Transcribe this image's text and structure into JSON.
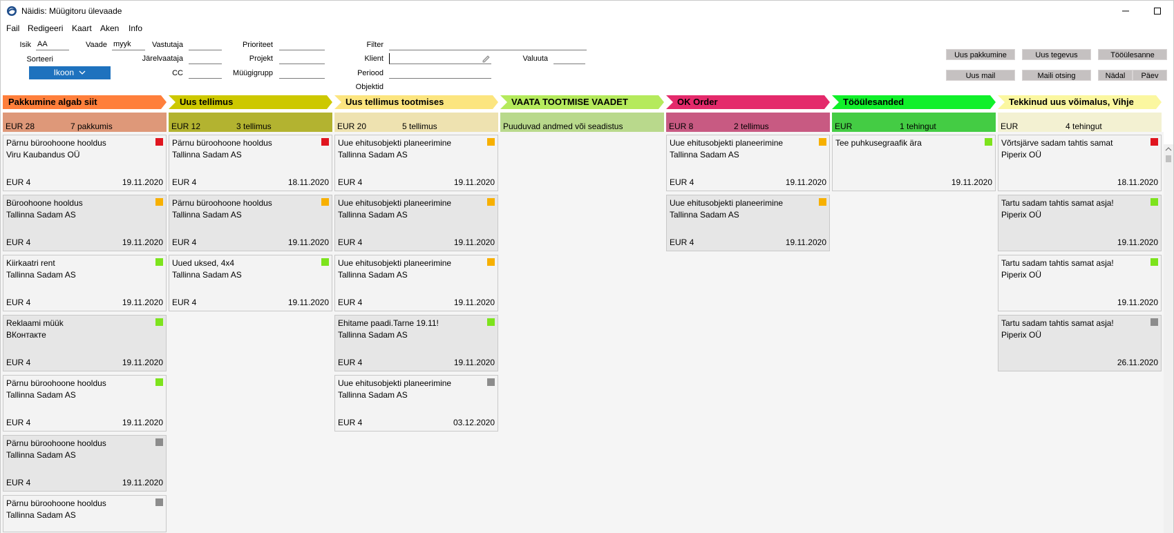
{
  "window": {
    "title": "Näidis: Müügitoru ülevaade"
  },
  "menu": [
    "Fail",
    "Redigeeri",
    "Kaart",
    "Aken",
    "Info"
  ],
  "filters": {
    "isik": {
      "label": "Isik",
      "value": "AA"
    },
    "vaade": {
      "label": "Vaade",
      "value": "myyk"
    },
    "sorteeri": {
      "label": "Sorteeri"
    },
    "ikoon": {
      "label": "Ikoon"
    },
    "vastutaja": {
      "label": "Vastutaja",
      "value": ""
    },
    "jarelvaataja": {
      "label": "Järelvaataja",
      "value": ""
    },
    "cc": {
      "label": "CC",
      "value": ""
    },
    "prioriteet": {
      "label": "Prioriteet",
      "value": ""
    },
    "projekt": {
      "label": "Projekt",
      "value": ""
    },
    "myygigrupp": {
      "label": "Müügigrupp",
      "value": ""
    },
    "filter": {
      "label": "Filter",
      "value": ""
    },
    "klient": {
      "label": "Klient",
      "value": ""
    },
    "periood": {
      "label": "Periood",
      "value": ""
    },
    "objektid": {
      "label": "Objektid"
    },
    "valuuta": {
      "label": "Valuuta",
      "value": ""
    }
  },
  "toolbar": {
    "uus_pakkumine": "Uus pakkumine",
    "uus_tegevus": "Uus tegevus",
    "tooulesanne": "Tööülesanne",
    "uus_mail": "Uus mail",
    "maili_otsing": "Maili otsing",
    "nadal": "Nädal",
    "paev": "Päev"
  },
  "colors": {
    "red": "#e0151f",
    "orange": "#f7b000",
    "green": "#7de31c",
    "grey": "#8c8c8c"
  },
  "columns": [
    {
      "title": "Pakkumine algab siit",
      "head_color": "#ff7f3b",
      "sum_color": "#de9879",
      "currency": "EUR 28",
      "count": "7 pakkumis",
      "note": "",
      "cards": [
        {
          "title": "Pärnu büroohoone hooldus",
          "client": "Viru Kaubandus OÜ",
          "amount": "EUR 4",
          "date": "19.11.2020",
          "priority": "red"
        },
        {
          "title": "Büroohoone hooldus",
          "client": "Tallinna Sadam AS",
          "amount": "EUR 4",
          "date": "19.11.2020",
          "priority": "orange"
        },
        {
          "title": "Kiirkaatri rent",
          "client": "Tallinna Sadam AS",
          "amount": "EUR 4",
          "date": "19.11.2020",
          "priority": "green"
        },
        {
          "title": "Reklaami müük",
          "client": "ВКонтакте",
          "amount": "EUR 4",
          "date": "19.11.2020",
          "priority": "green"
        },
        {
          "title": "Pärnu büroohoone hooldus",
          "client": "Tallinna Sadam AS",
          "amount": "EUR 4",
          "date": "19.11.2020",
          "priority": "green"
        },
        {
          "title": "Pärnu büroohoone hooldus",
          "client": "Tallinna Sadam AS",
          "amount": "EUR 4",
          "date": "19.11.2020",
          "priority": "grey"
        },
        {
          "title": "Pärnu büroohoone hooldus",
          "client": "Tallinna Sadam AS",
          "amount": "",
          "date": "",
          "priority": "grey"
        }
      ]
    },
    {
      "title": "Uus tellimus",
      "head_color": "#cdc800",
      "sum_color": "#b3b330",
      "currency": "EUR 12",
      "count": "3 tellimus",
      "note": "",
      "cards": [
        {
          "title": "Pärnu büroohoone hooldus",
          "client": "Tallinna Sadam AS",
          "amount": "EUR 4",
          "date": "18.11.2020",
          "priority": "red"
        },
        {
          "title": "Pärnu büroohoone hooldus",
          "client": "Tallinna Sadam AS",
          "amount": "EUR 4",
          "date": "19.11.2020",
          "priority": "orange"
        },
        {
          "title": "Uued uksed, 4x4",
          "client": "Tallinna Sadam AS",
          "amount": "EUR 4",
          "date": "19.11.2020",
          "priority": "green"
        }
      ]
    },
    {
      "title": "Uus tellimus tootmises",
      "head_color": "#fce57f",
      "sum_color": "#eee2b0",
      "currency": "EUR 20",
      "count": "5 tellimus",
      "note": "",
      "cards": [
        {
          "title": "Uue ehitusobjekti planeerimine",
          "client": "Tallinna Sadam AS",
          "amount": "EUR 4",
          "date": "19.11.2020",
          "priority": "orange"
        },
        {
          "title": "Uue ehitusobjekti planeerimine",
          "client": "Tallinna Sadam AS",
          "amount": "EUR 4",
          "date": "19.11.2020",
          "priority": "orange"
        },
        {
          "title": "Uue ehitusobjekti planeerimine",
          "client": "Tallinna Sadam AS",
          "amount": "EUR 4",
          "date": "19.11.2020",
          "priority": "orange"
        },
        {
          "title": "Ehitame paadi.Tarne 19.11!",
          "client": "Tallinna Sadam AS",
          "amount": "EUR 4",
          "date": "19.11.2020",
          "priority": "green"
        },
        {
          "title": "Uue ehitusobjekti planeerimine",
          "client": "Tallinna Sadam AS",
          "amount": "EUR 4",
          "date": "03.12.2020",
          "priority": "grey"
        }
      ]
    },
    {
      "title": "VAATA TOOTMISE VAADET",
      "head_color": "#b5ea5c",
      "sum_color": "#b9d98c",
      "currency": "",
      "count": "",
      "note": "Puuduvad andmed või seadistus",
      "cards": []
    },
    {
      "title": "OK Order",
      "head_color": "#e42a6b",
      "sum_color": "#c85a82",
      "currency": "EUR 8",
      "count": "2 tellimus",
      "note": "",
      "cards": [
        {
          "title": "Uue ehitusobjekti planeerimine",
          "client": "Tallinna Sadam AS",
          "amount": "EUR 4",
          "date": "19.11.2020",
          "priority": "orange"
        },
        {
          "title": "Uue ehitusobjekti planeerimine",
          "client": "Tallinna Sadam AS",
          "amount": "EUR 4",
          "date": "19.11.2020",
          "priority": "orange"
        }
      ]
    },
    {
      "title": "Tööülesanded",
      "head_color": "#10f02a",
      "sum_color": "#44cc44",
      "currency": "EUR",
      "count": "1 tehingut",
      "note": "",
      "cards": [
        {
          "title": "Tee puhkusegraafik ära",
          "client": "",
          "amount": "",
          "date": "19.11.2020",
          "priority": "green"
        }
      ]
    },
    {
      "title": "Tekkinud uus võimalus, Vihje",
      "head_color": "#fbf7a0",
      "sum_color": "#f3f1d2",
      "currency": "EUR",
      "count": "4 tehingut",
      "note": "",
      "cards": [
        {
          "title": "Võrtsjärve  sadam tahtis samat",
          "client": "Piperix OÜ",
          "amount": "",
          "date": "18.11.2020",
          "priority": "red"
        },
        {
          "title": "Tartu sadam tahtis samat asja!",
          "client": "Piperix OÜ",
          "amount": "",
          "date": "19.11.2020",
          "priority": "green"
        },
        {
          "title": "Tartu sadam tahtis samat asja!",
          "client": "Piperix OÜ",
          "amount": "",
          "date": "19.11.2020",
          "priority": "green"
        },
        {
          "title": "Tartu sadam tahtis samat asja!",
          "client": "Piperix OÜ",
          "amount": "",
          "date": "26.11.2020",
          "priority": "grey"
        }
      ]
    }
  ]
}
